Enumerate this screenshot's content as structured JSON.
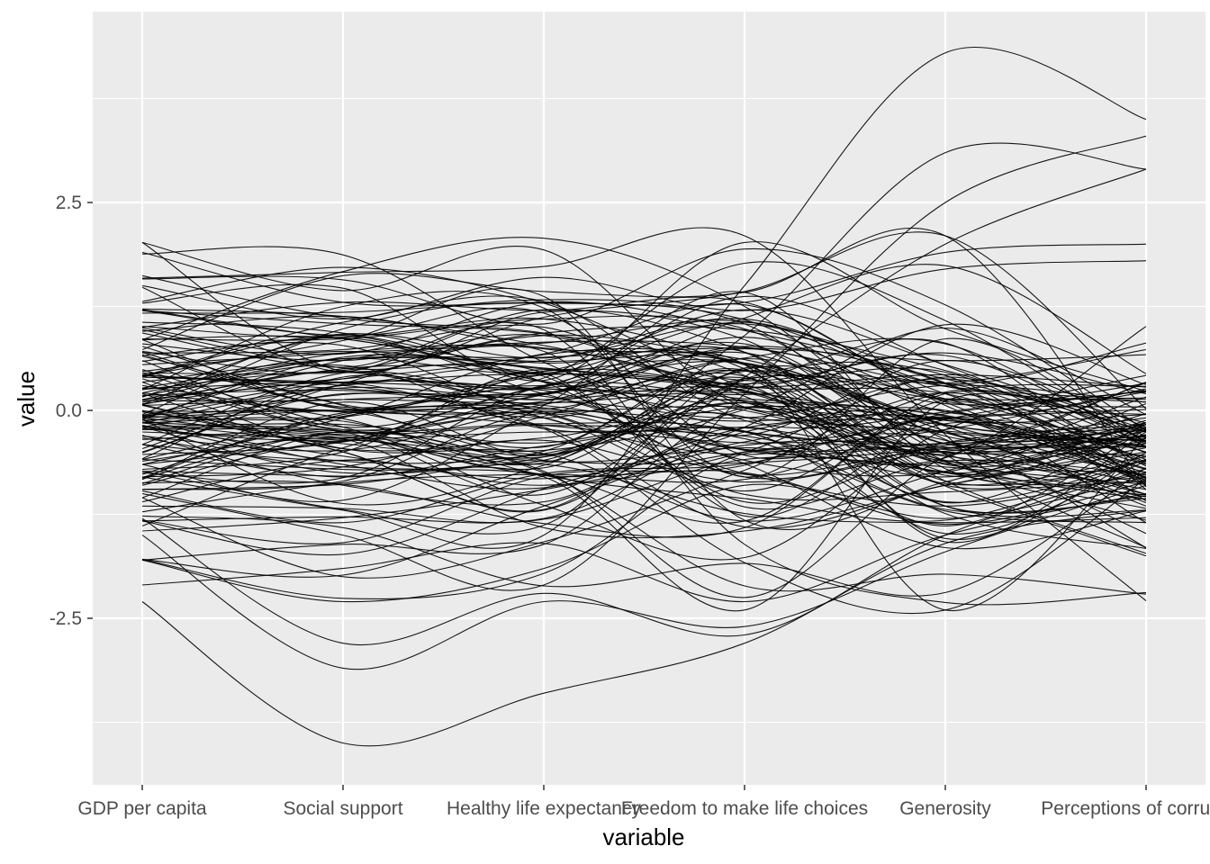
{
  "chart_data": {
    "type": "line",
    "chart_kind": "parallel-coordinates",
    "title": "",
    "xlabel": "variable",
    "ylabel": "value",
    "categories": [
      "GDP per capita",
      "Social support",
      "Healthy life expectancy",
      "Freedom to make life choices",
      "Generosity",
      "Perceptions of corruption"
    ],
    "ylim": [
      -4.5,
      4.8
    ],
    "yticks": [
      -2.5,
      0,
      2.5
    ],
    "ytick_labels": [
      "-2.5",
      "0.0",
      "2.5"
    ],
    "grid": true,
    "legend": "none",
    "series_count": 156,
    "representative_series": [
      {
        "values": [
          -2.3,
          -4.0,
          -3.4,
          -2.8,
          -1.6,
          -1.2
        ]
      },
      {
        "values": [
          -1.5,
          -3.1,
          -2.3,
          -2.6,
          -1.7,
          -0.9
        ]
      },
      {
        "values": [
          -1.3,
          -2.8,
          -2.2,
          -2.7,
          -1.5,
          -0.7
        ]
      },
      {
        "values": [
          1.9,
          1.3,
          1.3,
          1.3,
          1.9,
          2.0
        ]
      },
      {
        "values": [
          1.5,
          1.1,
          1.6,
          1.2,
          1.7,
          1.8
        ]
      },
      {
        "values": [
          -0.8,
          -1.2,
          -1.5,
          1.5,
          4.3,
          3.5
        ]
      },
      {
        "values": [
          0.3,
          -0.1,
          -0.6,
          0.9,
          3.1,
          2.9
        ]
      },
      {
        "values": [
          -1.0,
          -1.5,
          -2.1,
          0.2,
          2.5,
          3.3
        ]
      },
      {
        "values": [
          0.0,
          -0.5,
          -1.2,
          0.4,
          2.0,
          2.9
        ]
      },
      {
        "values": [
          1.2,
          0.9,
          1.1,
          0.5,
          -0.9,
          -0.6
        ]
      },
      {
        "values": [
          0.8,
          0.6,
          0.9,
          0.1,
          -0.5,
          -0.4
        ]
      },
      {
        "values": [
          -0.5,
          0.2,
          -0.2,
          -1.4,
          -0.9,
          -0.5
        ]
      },
      {
        "values": [
          0.4,
          0.9,
          0.2,
          -0.3,
          0.6,
          -0.2
        ]
      },
      {
        "values": [
          -1.8,
          -2.3,
          -1.9,
          -0.9,
          -1.3,
          -0.8
        ]
      },
      {
        "values": [
          0.1,
          0.5,
          0.6,
          1.1,
          0.2,
          -0.5
        ]
      },
      {
        "values": [
          -0.3,
          -0.9,
          -1.1,
          -0.2,
          -1.1,
          -0.6
        ]
      },
      {
        "values": [
          1.0,
          1.3,
          1.2,
          1.3,
          0.1,
          -0.7
        ]
      },
      {
        "values": [
          -2.1,
          -1.9,
          -1.6,
          -2.3,
          -1.5,
          -1.0
        ]
      },
      {
        "values": [
          0.6,
          -0.2,
          0.3,
          0.8,
          -0.4,
          -0.3
        ]
      },
      {
        "values": [
          -1.1,
          -0.6,
          -0.9,
          -0.5,
          0.4,
          -0.4
        ]
      }
    ]
  }
}
